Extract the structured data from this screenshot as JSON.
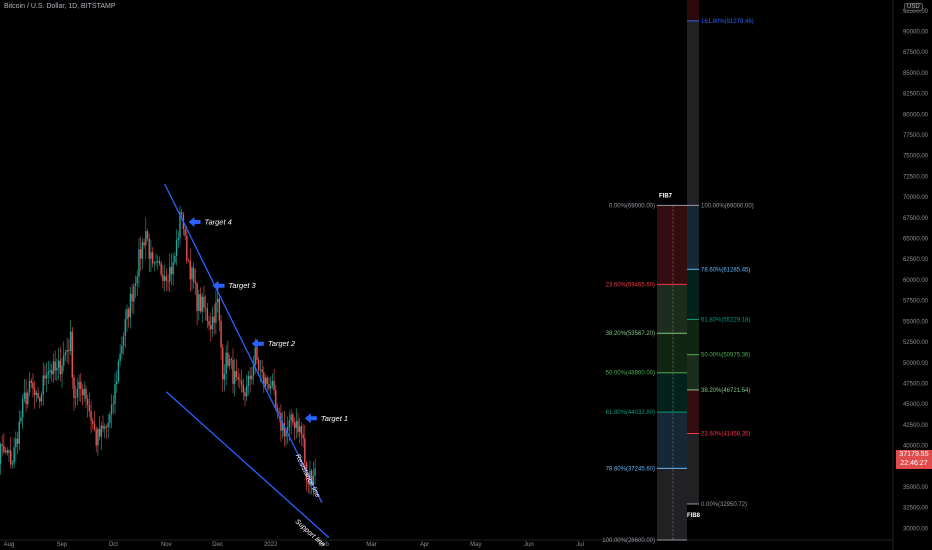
{
  "header": {
    "title": "Bitcoin / U.S. Dollar, 1D, BITSTAMP",
    "currency": "USD"
  },
  "price_badge": {
    "price": "37179.55",
    "countdown": "22:46:27",
    "color": "#e04b4b"
  },
  "colors": {
    "up": "#26a69a",
    "down": "#ef5350",
    "trendline": "#2962ff",
    "target_arrow": "#2962ff",
    "background": "#000000",
    "axis_text": "#8a8f99"
  },
  "chart_data": {
    "type": "candlestick",
    "title": "Bitcoin / U.S. Dollar, 1D, BITSTAMP",
    "x_ticks": [
      "Aug",
      "Sep",
      "Oct",
      "Nov",
      "Dec",
      "2022",
      "Feb",
      "Mar",
      "Apr",
      "May",
      "Jun",
      "Jul"
    ],
    "x_tick_dates": [
      "2021-08-01",
      "2021-09-01",
      "2021-10-01",
      "2021-11-01",
      "2021-12-01",
      "2022-01-01",
      "2022-02-01",
      "2022-03-01",
      "2022-04-01",
      "2022-05-01",
      "2022-06-01",
      "2022-07-01"
    ],
    "y_ticks": [
      30000,
      32500,
      35000,
      37500,
      40000,
      42500,
      45000,
      47500,
      50000,
      52500,
      55000,
      57500,
      60000,
      62500,
      65000,
      67500,
      70000,
      72500,
      75000,
      77500,
      80000,
      82500,
      85000,
      87500,
      90000,
      92500
    ],
    "y_tick_labels": [
      "30000.00",
      "32500.00",
      "35000.00",
      "37500.00",
      "40000.00",
      "42500.00",
      "45000.00",
      "47500.00",
      "50000.00",
      "52500.00",
      "55000.00",
      "57500.00",
      "60000.00",
      "62500.00",
      "65000.00",
      "67500.00",
      "70000.00",
      "72500.00",
      "75000.00",
      "77500.00",
      "80000.00",
      "82500.00",
      "85000.00",
      "87500.00",
      "90000.00",
      "92500.00"
    ],
    "ylim": [
      28600,
      93800
    ],
    "close_keypoints": [
      {
        "date": "2021-07-20",
        "close": 30800
      },
      {
        "date": "2021-07-27",
        "close": 39500
      },
      {
        "date": "2021-08-03",
        "close": 38200
      },
      {
        "date": "2021-08-10",
        "close": 45600
      },
      {
        "date": "2021-08-14",
        "close": 47100
      },
      {
        "date": "2021-08-18",
        "close": 44700
      },
      {
        "date": "2021-08-23",
        "close": 49500
      },
      {
        "date": "2021-08-29",
        "close": 48800
      },
      {
        "date": "2021-09-06",
        "close": 52700
      },
      {
        "date": "2021-09-08",
        "close": 46100
      },
      {
        "date": "2021-09-14",
        "close": 47100
      },
      {
        "date": "2021-09-21",
        "close": 40700
      },
      {
        "date": "2021-09-27",
        "close": 42200
      },
      {
        "date": "2021-09-30",
        "close": 43800
      },
      {
        "date": "2021-10-05",
        "close": 51500
      },
      {
        "date": "2021-10-11",
        "close": 57500
      },
      {
        "date": "2021-10-15",
        "close": 61500
      },
      {
        "date": "2021-10-20",
        "close": 66000
      },
      {
        "date": "2021-10-24",
        "close": 61000
      },
      {
        "date": "2021-10-28",
        "close": 61300
      },
      {
        "date": "2021-11-01",
        "close": 61000
      },
      {
        "date": "2021-11-05",
        "close": 61500
      },
      {
        "date": "2021-11-10",
        "close": 68600
      },
      {
        "date": "2021-11-12",
        "close": 64300
      },
      {
        "date": "2021-11-16",
        "close": 60400
      },
      {
        "date": "2021-11-19",
        "close": 57500
      },
      {
        "date": "2021-11-23",
        "close": 56500
      },
      {
        "date": "2021-11-27",
        "close": 54800
      },
      {
        "date": "2021-12-01",
        "close": 57200
      },
      {
        "date": "2021-12-04",
        "close": 49200
      },
      {
        "date": "2021-12-07",
        "close": 50600
      },
      {
        "date": "2021-12-13",
        "close": 46700
      },
      {
        "date": "2021-12-18",
        "close": 46600
      },
      {
        "date": "2021-12-23",
        "close": 50800
      },
      {
        "date": "2021-12-28",
        "close": 47600
      },
      {
        "date": "2022-01-01",
        "close": 47700
      },
      {
        "date": "2022-01-05",
        "close": 43100
      },
      {
        "date": "2022-01-10",
        "close": 41800
      },
      {
        "date": "2022-01-13",
        "close": 42600
      },
      {
        "date": "2022-01-16",
        "close": 43100
      },
      {
        "date": "2022-01-20",
        "close": 40700
      },
      {
        "date": "2022-01-22",
        "close": 35100
      },
      {
        "date": "2022-01-24",
        "close": 36300
      },
      {
        "date": "2022-01-27",
        "close": 37200
      }
    ],
    "trendlines": [
      {
        "label": "Resistance line",
        "from": {
          "date": "2021-10-31",
          "price": 71600
        },
        "to": {
          "date": "2022-01-31",
          "price": 33100
        }
      },
      {
        "label": "Support line",
        "from": {
          "date": "2021-11-01",
          "price": 46500
        },
        "to": {
          "date": "2022-02-04",
          "price": 28900
        }
      }
    ],
    "targets": [
      {
        "label": "Target 4",
        "date": "2021-11-14",
        "price": 67000
      },
      {
        "label": "Target 3",
        "date": "2021-11-28",
        "price": 59300
      },
      {
        "label": "Target 2",
        "date": "2021-12-21",
        "price": 52300
      },
      {
        "label": "Target 1",
        "date": "2022-01-21",
        "price": 43300
      }
    ],
    "fib_retracements": [
      {
        "name": "FIB7",
        "column_date": "2022-05-02",
        "levels": [
          {
            "label": "0.00%(69000.00)",
            "price": 69000,
            "color": "#9598a1"
          },
          {
            "label": "23.60%(59465.60)",
            "price": 59465.6,
            "color": "#f23645"
          },
          {
            "label": "38.20%(53567.20)",
            "price": 53567.2,
            "color": "#81c784"
          },
          {
            "label": "50.00%(48800.00)",
            "price": 48800,
            "color": "#4caf50"
          },
          {
            "label": "61.80%(44032.80)",
            "price": 44032.8,
            "color": "#089981"
          },
          {
            "label": "78.60%(37245.60)",
            "price": 37245.6,
            "color": "#64b5f6"
          },
          {
            "label": "100.00%(28600.00)",
            "price": 28600,
            "color": "#9598a1"
          }
        ]
      },
      {
        "name": "FIB8",
        "column_date": "2022-05-02",
        "levels": [
          {
            "label": "161.80%(91278.46)",
            "price": 91278.46,
            "color": "#2962ff"
          },
          {
            "label": "100.00%(69000.00)",
            "price": 69000,
            "color": "#9598a1"
          },
          {
            "label": "78.60%(61285.45)",
            "price": 61285.45,
            "color": "#64b5f6"
          },
          {
            "label": "61.80%(55229.18)",
            "price": 55229.18,
            "color": "#089981"
          },
          {
            "label": "50.00%(50975.36)",
            "price": 50975.36,
            "color": "#4caf50"
          },
          {
            "label": "38.20%(46721.54)",
            "price": 46721.54,
            "color": "#81c784"
          },
          {
            "label": "23.60%(41458.35)",
            "price": 41458.35,
            "color": "#f23645"
          },
          {
            "label": "0.00%(32950.72)",
            "price": 32950.72,
            "color": "#9598a1"
          }
        ]
      }
    ]
  }
}
